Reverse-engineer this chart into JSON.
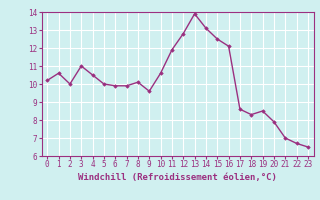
{
  "x": [
    0,
    1,
    2,
    3,
    4,
    5,
    6,
    7,
    8,
    9,
    10,
    11,
    12,
    13,
    14,
    15,
    16,
    17,
    18,
    19,
    20,
    21,
    22,
    23
  ],
  "y": [
    10.2,
    10.6,
    10.0,
    11.0,
    10.5,
    10.0,
    9.9,
    9.9,
    10.1,
    9.6,
    10.6,
    11.9,
    12.8,
    13.9,
    13.1,
    12.5,
    12.1,
    8.6,
    8.3,
    8.5,
    7.9,
    7.0,
    6.7,
    6.5
  ],
  "line_color": "#9b3080",
  "marker": "D",
  "markersize": 1.8,
  "linewidth": 1.0,
  "xlabel": "Windchill (Refroidissement éolien,°C)",
  "xlabel_fontsize": 6.5,
  "bg_color": "#d0f0f0",
  "grid_color": "#ffffff",
  "tick_label_color": "#9b3080",
  "axis_label_color": "#9b3080",
  "xlim": [
    -0.5,
    23.5
  ],
  "ylim": [
    6,
    14
  ],
  "yticks": [
    6,
    7,
    8,
    9,
    10,
    11,
    12,
    13,
    14
  ],
  "xticks": [
    0,
    1,
    2,
    3,
    4,
    5,
    6,
    7,
    8,
    9,
    10,
    11,
    12,
    13,
    14,
    15,
    16,
    17,
    18,
    19,
    20,
    21,
    22,
    23
  ],
  "tick_fontsize": 5.5
}
